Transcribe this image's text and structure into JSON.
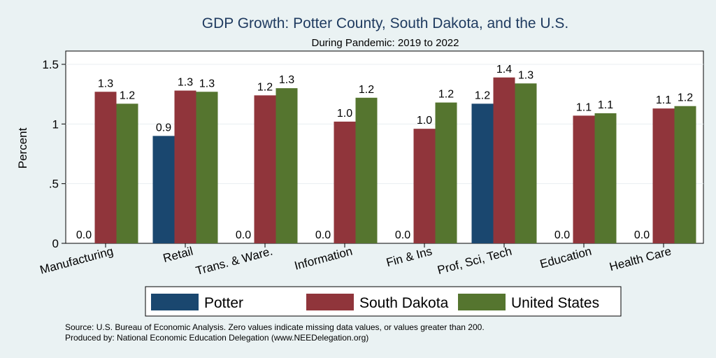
{
  "chart_data": {
    "type": "bar",
    "title": "GDP Growth: Potter County, South Dakota, and the U.S.",
    "subtitle": "During Pandemic: 2019 to 2022",
    "ylabel": "Percent",
    "xlabel": "",
    "ylim": [
      0,
      1.6
    ],
    "yticks": [
      {
        "value": 0,
        "label": "0"
      },
      {
        "value": 0.5,
        "label": ".5"
      },
      {
        "value": 1,
        "label": "1"
      },
      {
        "value": 1.5,
        "label": "1.5"
      }
    ],
    "grid": true,
    "legend_position": "bottom",
    "categories": [
      "Manufacturing",
      "Retail",
      "Trans. & Ware.",
      "Information",
      "Fin & Ins",
      "Prof, Sci, Tech",
      "Education",
      "Health Care"
    ],
    "series": [
      {
        "name": "Potter",
        "color": "#1a476f",
        "values": [
          null,
          0.9,
          null,
          null,
          null,
          1.17,
          null,
          null
        ],
        "labels": [
          "0.0",
          "0.9",
          "0.0",
          "0.0",
          "0.0",
          "1.2",
          "0.0",
          "0.0"
        ]
      },
      {
        "name": "South Dakota",
        "color": "#90353b",
        "values": [
          1.27,
          1.28,
          1.24,
          1.02,
          0.96,
          1.39,
          1.07,
          1.13
        ],
        "labels": [
          "1.3",
          "1.3",
          "1.2",
          "1.0",
          "1.0",
          "1.4",
          "1.1",
          "1.1"
        ]
      },
      {
        "name": "United States",
        "color": "#55752f",
        "values": [
          1.17,
          1.27,
          1.3,
          1.22,
          1.18,
          1.34,
          1.09,
          1.15
        ],
        "labels": [
          "1.2",
          "1.3",
          "1.3",
          "1.2",
          "1.2",
          "1.3",
          "1.1",
          "1.2"
        ]
      }
    ]
  },
  "footer": {
    "source": "Source: U.S. Bureau of Economic Analysis. Zero values indicate missing data values, or values greater than 200.",
    "produced_by": "Produced by: National Economic Education Delegation (www.NEEDelegation.org)"
  }
}
